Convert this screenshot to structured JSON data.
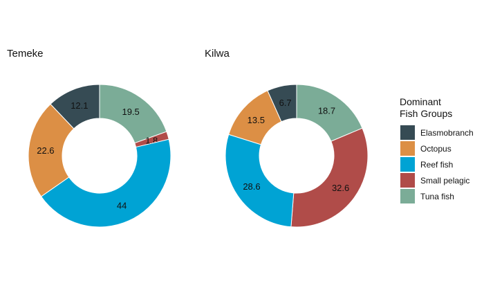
{
  "legend": {
    "title_line1": "Dominant",
    "title_line2": "Fish Groups"
  },
  "colors": {
    "Elasmobranch": "#364b54",
    "Octopus": "#dc8f45",
    "Reef fish": "#00a3d4",
    "Small pelagic": "#b04c49",
    "Tuna fish": "#7bac97"
  },
  "chart_data": [
    {
      "type": "pie",
      "variant": "donut",
      "title": "Temeke",
      "categories": [
        "Elasmobranch",
        "Octopus",
        "Reef fish",
        "Small pelagic",
        "Tuna fish"
      ],
      "values": [
        12.1,
        22.6,
        44,
        1.8,
        19.5
      ],
      "value_labels": [
        "12.1",
        "22.6",
        "44",
        "1.8",
        "19.5"
      ],
      "legend_placement": "right"
    },
    {
      "type": "pie",
      "variant": "donut",
      "title": "Kilwa",
      "categories": [
        "Elasmobranch",
        "Octopus",
        "Reef fish",
        "Small pelagic",
        "Tuna fish"
      ],
      "values": [
        6.7,
        13.5,
        28.6,
        32.6,
        18.7
      ],
      "value_labels": [
        "6.7",
        "13.5",
        "28.6",
        "32.6",
        "18.7"
      ],
      "legend_placement": "right"
    }
  ]
}
